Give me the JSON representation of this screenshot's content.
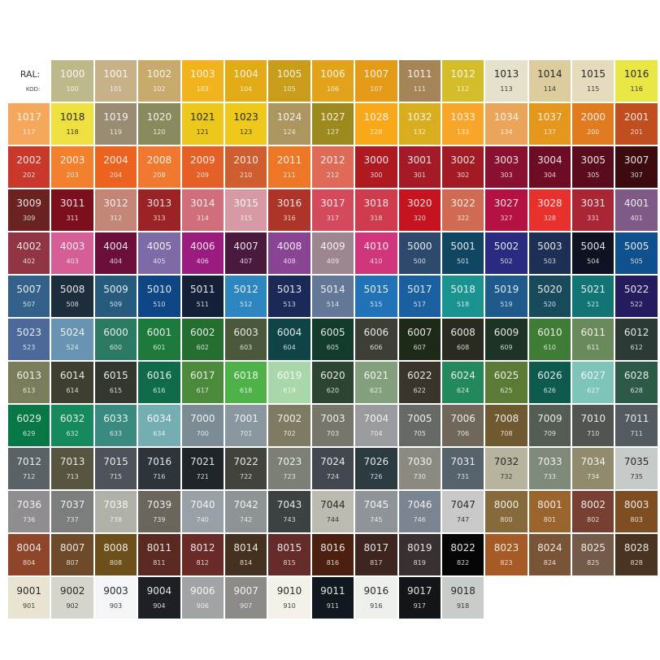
{
  "header": {
    "ral_label": "RAL:",
    "kod_label": "KOD:"
  },
  "rows": [
    [
      [
        "1000",
        "100",
        "#bdb98a"
      ],
      [
        "1001",
        "101",
        "#c6b188"
      ],
      [
        "1002",
        "102",
        "#c8aa6c"
      ],
      [
        "1003",
        "103",
        "#f2b31c"
      ],
      [
        "1004",
        "104",
        "#e2ab16"
      ],
      [
        "1005",
        "105",
        "#c99c1a"
      ],
      [
        "1006",
        "106",
        "#e2a21a"
      ],
      [
        "1007",
        "107",
        "#e59b18"
      ],
      [
        "1011",
        "111",
        "#a58457"
      ],
      [
        "1012",
        "112",
        "#d4bd2a"
      ],
      [
        "1013",
        "113",
        "#e6e1cb",
        1
      ],
      [
        "1014",
        "114",
        "#ddcc9e",
        1
      ],
      [
        "1015",
        "115",
        "#e7dbbd",
        1
      ],
      [
        "1016",
        "116",
        "#e8e745",
        1
      ]
    ],
    [
      [
        "1017",
        "117",
        "#f5a85b"
      ],
      [
        "1018",
        "118",
        "#ede040",
        1
      ],
      [
        "1019",
        "119",
        "#998c72"
      ],
      [
        "1020",
        "120",
        "#8a8a5f"
      ],
      [
        "1021",
        "121",
        "#ecc81c",
        1
      ],
      [
        "1023",
        "123",
        "#eec91c",
        1
      ],
      [
        "1024",
        "124",
        "#ad9560"
      ],
      [
        "1027",
        "127",
        "#9c8a1f"
      ],
      [
        "1028",
        "128",
        "#f9a81a"
      ],
      [
        "1032",
        "132",
        "#d8ae1f"
      ],
      [
        "1033",
        "133",
        "#f8a62a"
      ],
      [
        "1034",
        "134",
        "#eba55a"
      ],
      [
        "1037",
        "137",
        "#e5961d"
      ],
      [
        "2000",
        "200",
        "#e07b20"
      ],
      [
        "2001",
        "201",
        "#c04e1f"
      ]
    ],
    [
      [
        "2002",
        "202",
        "#c9382a"
      ],
      [
        "2003",
        "203",
        "#f2802d"
      ],
      [
        "2004",
        "204",
        "#ec6320"
      ],
      [
        "2008",
        "208",
        "#f0782f"
      ],
      [
        "2009",
        "209",
        "#e46027"
      ],
      [
        "2010",
        "210",
        "#d05d2f"
      ],
      [
        "2011",
        "211",
        "#ed7627"
      ],
      [
        "2012",
        "212",
        "#e06a58"
      ],
      [
        "3000",
        "300",
        "#ae1a20"
      ],
      [
        "3001",
        "301",
        "#a41a26"
      ],
      [
        "3002",
        "302",
        "#a21a24"
      ],
      [
        "3003",
        "303",
        "#8a1031"
      ],
      [
        "3004",
        "304",
        "#6d0c24"
      ],
      [
        "3005",
        "305",
        "#5b0c1c"
      ],
      [
        "3007",
        "307",
        "#3b0b0f"
      ]
    ],
    [
      [
        "3009",
        "309",
        "#6a2320"
      ],
      [
        "3011",
        "311",
        "#7b0f1c"
      ],
      [
        "3012",
        "312",
        "#c28576"
      ],
      [
        "3013",
        "313",
        "#9b2225"
      ],
      [
        "3014",
        "314",
        "#d06e7c"
      ],
      [
        "3015",
        "315",
        "#d79aa5"
      ],
      [
        "3016",
        "316",
        "#ae3429"
      ],
      [
        "3017",
        "317",
        "#d44a5c"
      ],
      [
        "3018",
        "318",
        "#d03a4d"
      ],
      [
        "3020",
        "320",
        "#c51420"
      ],
      [
        "3022",
        "322",
        "#d06a52"
      ],
      [
        "3027",
        "327",
        "#b51143"
      ],
      [
        "3028",
        "328",
        "#e8302c"
      ],
      [
        "3031",
        "331",
        "#ab2634"
      ],
      [
        "4001",
        "401",
        "#7f5a86"
      ]
    ],
    [
      [
        "4002",
        "402",
        "#913443"
      ],
      [
        "4003",
        "403",
        "#d55e96"
      ],
      [
        "4004",
        "404",
        "#6b0f3a"
      ],
      [
        "4005",
        "405",
        "#7d6aa6"
      ],
      [
        "4006",
        "406",
        "#9a1c7f"
      ],
      [
        "4007",
        "407",
        "#4a1a3e"
      ],
      [
        "4008",
        "408",
        "#894593"
      ],
      [
        "4009",
        "409",
        "#9c8691"
      ],
      [
        "4010",
        "410",
        "#d1367d"
      ],
      [
        "5000",
        "500",
        "#2d4a6c"
      ],
      [
        "5001",
        "501",
        "#104661"
      ],
      [
        "5002",
        "502",
        "#2a2b80"
      ],
      [
        "5003",
        "503",
        "#1d2f55"
      ],
      [
        "5004",
        "504",
        "#0f1222"
      ],
      [
        "5005",
        "505",
        "#10508c"
      ]
    ],
    [
      [
        "5007",
        "507",
        "#336189"
      ],
      [
        "5008",
        "508",
        "#1e2d3b"
      ],
      [
        "5009",
        "509",
        "#275b7d"
      ],
      [
        "5010",
        "510",
        "#0d4585"
      ],
      [
        "5011",
        "511",
        "#142037"
      ],
      [
        "5012",
        "512",
        "#2e86c1"
      ],
      [
        "5013",
        "513",
        "#1a2957"
      ],
      [
        "5014",
        "514",
        "#637896"
      ],
      [
        "5015",
        "515",
        "#2272b8"
      ],
      [
        "5017",
        "517",
        "#1a5fa0"
      ],
      [
        "5018",
        "518",
        "#1a9390"
      ],
      [
        "5019",
        "519",
        "#1e5b8c"
      ],
      [
        "5020",
        "520",
        "#184a5c"
      ],
      [
        "5021",
        "521",
        "#127474"
      ],
      [
        "5022",
        "522",
        "#251c5f"
      ]
    ],
    [
      [
        "5023",
        "523",
        "#4b6a99"
      ],
      [
        "5024",
        "524",
        "#6893b3"
      ],
      [
        "6000",
        "600",
        "#2b7863"
      ],
      [
        "6001",
        "601",
        "#1d7a3c"
      ],
      [
        "6002",
        "602",
        "#236d2e"
      ],
      [
        "6003",
        "603",
        "#4a573a"
      ],
      [
        "6004",
        "604",
        "#0f4346"
      ],
      [
        "6005",
        "605",
        "#123b2b"
      ],
      [
        "6006",
        "606",
        "#3d3f37"
      ],
      [
        "6007",
        "607",
        "#1c2a17"
      ],
      [
        "6008",
        "608",
        "#2a2b20"
      ],
      [
        "6009",
        "609",
        "#1d3325"
      ],
      [
        "6010",
        "610",
        "#3f7c35"
      ],
      [
        "6011",
        "611",
        "#6b8a5b"
      ],
      [
        "6012",
        "612",
        "#2b3a35"
      ]
    ],
    [
      [
        "6013",
        "613",
        "#7a7c5a"
      ],
      [
        "6014",
        "614",
        "#3f3e30"
      ],
      [
        "6015",
        "615",
        "#323830"
      ],
      [
        "6016",
        "616",
        "#0f6b4a"
      ],
      [
        "6017",
        "617",
        "#4a8a3a"
      ],
      [
        "6018",
        "618",
        "#4fb248"
      ],
      [
        "6019",
        "619",
        "#a8d8a9"
      ],
      [
        "6020",
        "620",
        "#2d4530"
      ],
      [
        "6021",
        "621",
        "#82a07c"
      ],
      [
        "6022",
        "622",
        "#3a352a"
      ],
      [
        "6024",
        "624",
        "#23885b"
      ],
      [
        "6025",
        "625",
        "#5a7a35"
      ],
      [
        "6026",
        "626",
        "#0e5a4c"
      ],
      [
        "6027",
        "627",
        "#7ec4b8"
      ],
      [
        "6028",
        "628",
        "#2c5a46"
      ]
    ],
    [
      [
        "6029",
        "629",
        "#077845"
      ],
      [
        "6032",
        "632",
        "#178a5d"
      ],
      [
        "6033",
        "633",
        "#3b8a80"
      ],
      [
        "6034",
        "634",
        "#74aeb2"
      ],
      [
        "7000",
        "700",
        "#7b8b94"
      ],
      [
        "7001",
        "701",
        "#8b979f"
      ],
      [
        "7002",
        "702",
        "#7f7a62"
      ],
      [
        "7003",
        "703",
        "#76766a"
      ],
      [
        "7004",
        "704",
        "#9a9b9e"
      ],
      [
        "7005",
        "705",
        "#666a66"
      ],
      [
        "7006",
        "706",
        "#6f685a"
      ],
      [
        "7008",
        "708",
        "#6e5930"
      ],
      [
        "7009",
        "709",
        "#545c54"
      ],
      [
        "7010",
        "710",
        "#505552"
      ],
      [
        "7011",
        "711",
        "#535b60"
      ]
    ],
    [
      [
        "7012",
        "712",
        "#5a6266"
      ],
      [
        "7013",
        "713",
        "#57543f"
      ],
      [
        "7015",
        "715",
        "#4d525b"
      ],
      [
        "7016",
        "716",
        "#2d343a"
      ],
      [
        "7021",
        "721",
        "#1f2428"
      ],
      [
        "7022",
        "722",
        "#41423b"
      ],
      [
        "7023",
        "723",
        "#7c7f75"
      ],
      [
        "7024",
        "724",
        "#434850"
      ],
      [
        "7026",
        "726",
        "#2b3b40"
      ],
      [
        "7030",
        "730",
        "#8c8a80"
      ],
      [
        "7031",
        "731",
        "#56626c"
      ],
      [
        "7032",
        "732",
        "#b6b49f",
        1
      ],
      [
        "7033",
        "733",
        "#808a7b"
      ],
      [
        "7034",
        "734",
        "#908b6c"
      ],
      [
        "7035",
        "735",
        "#c5cac8",
        1
      ]
    ],
    [
      [
        "7036",
        "736",
        "#8f8d90"
      ],
      [
        "7037",
        "737",
        "#7b7e7d"
      ],
      [
        "7038",
        "738",
        "#afb0a7"
      ],
      [
        "7039",
        "739",
        "#6a665c"
      ],
      [
        "7040",
        "740",
        "#9aa0a7"
      ],
      [
        "7042",
        "742",
        "#8e9396"
      ],
      [
        "7043",
        "743",
        "#3c4141"
      ],
      [
        "7044",
        "744",
        "#bcbbb0",
        1
      ],
      [
        "7045",
        "745",
        "#8f9499"
      ],
      [
        "7046",
        "746",
        "#7a8591"
      ],
      [
        "7047",
        "747",
        "#c9c9c9",
        1
      ],
      [
        "8000",
        "800",
        "#876a3b"
      ],
      [
        "8001",
        "801",
        "#9a642d"
      ],
      [
        "8002",
        "802",
        "#784032"
      ],
      [
        "8003",
        "803",
        "#7e4d22"
      ]
    ],
    [
      [
        "8004",
        "804",
        "#8e4529"
      ],
      [
        "8007",
        "807",
        "#6d4a2a"
      ],
      [
        "8008",
        "808",
        "#6d4f1b"
      ],
      [
        "8011",
        "811",
        "#5a2a22"
      ],
      [
        "8012",
        "812",
        "#6a2a27"
      ],
      [
        "8014",
        "814",
        "#45311f"
      ],
      [
        "8015",
        "815",
        "#652b28"
      ],
      [
        "8016",
        "816",
        "#4c2010"
      ],
      [
        "8017",
        "817",
        "#3e2520"
      ],
      [
        "8019",
        "819",
        "#38312f"
      ],
      [
        "8022",
        "822",
        "#060606"
      ],
      [
        "8023",
        "823",
        "#a65a26"
      ],
      [
        "8024",
        "824",
        "#7a5437"
      ],
      [
        "8025",
        "825",
        "#745a48"
      ],
      [
        "8028",
        "828",
        "#4a3320"
      ]
    ],
    [
      [
        "9001",
        "901",
        "#e9e4d2",
        1
      ],
      [
        "9002",
        "902",
        "#d5d5cb",
        1
      ],
      [
        "9003",
        "903",
        "#f4f5f6",
        1
      ],
      [
        "9004",
        "904",
        "#1d2125"
      ],
      [
        "9006",
        "906",
        "#a1a4a5"
      ],
      [
        "9007",
        "907",
        "#8c8b88"
      ],
      [
        "9010",
        "910",
        "#f4f2e8",
        1
      ],
      [
        "9011",
        "911",
        "#111820"
      ],
      [
        "9016",
        "916",
        "#eef0ec",
        1
      ],
      [
        "9017",
        "917",
        "#121619"
      ],
      [
        "9018",
        "918",
        "#c8cdc9",
        1
      ]
    ]
  ]
}
